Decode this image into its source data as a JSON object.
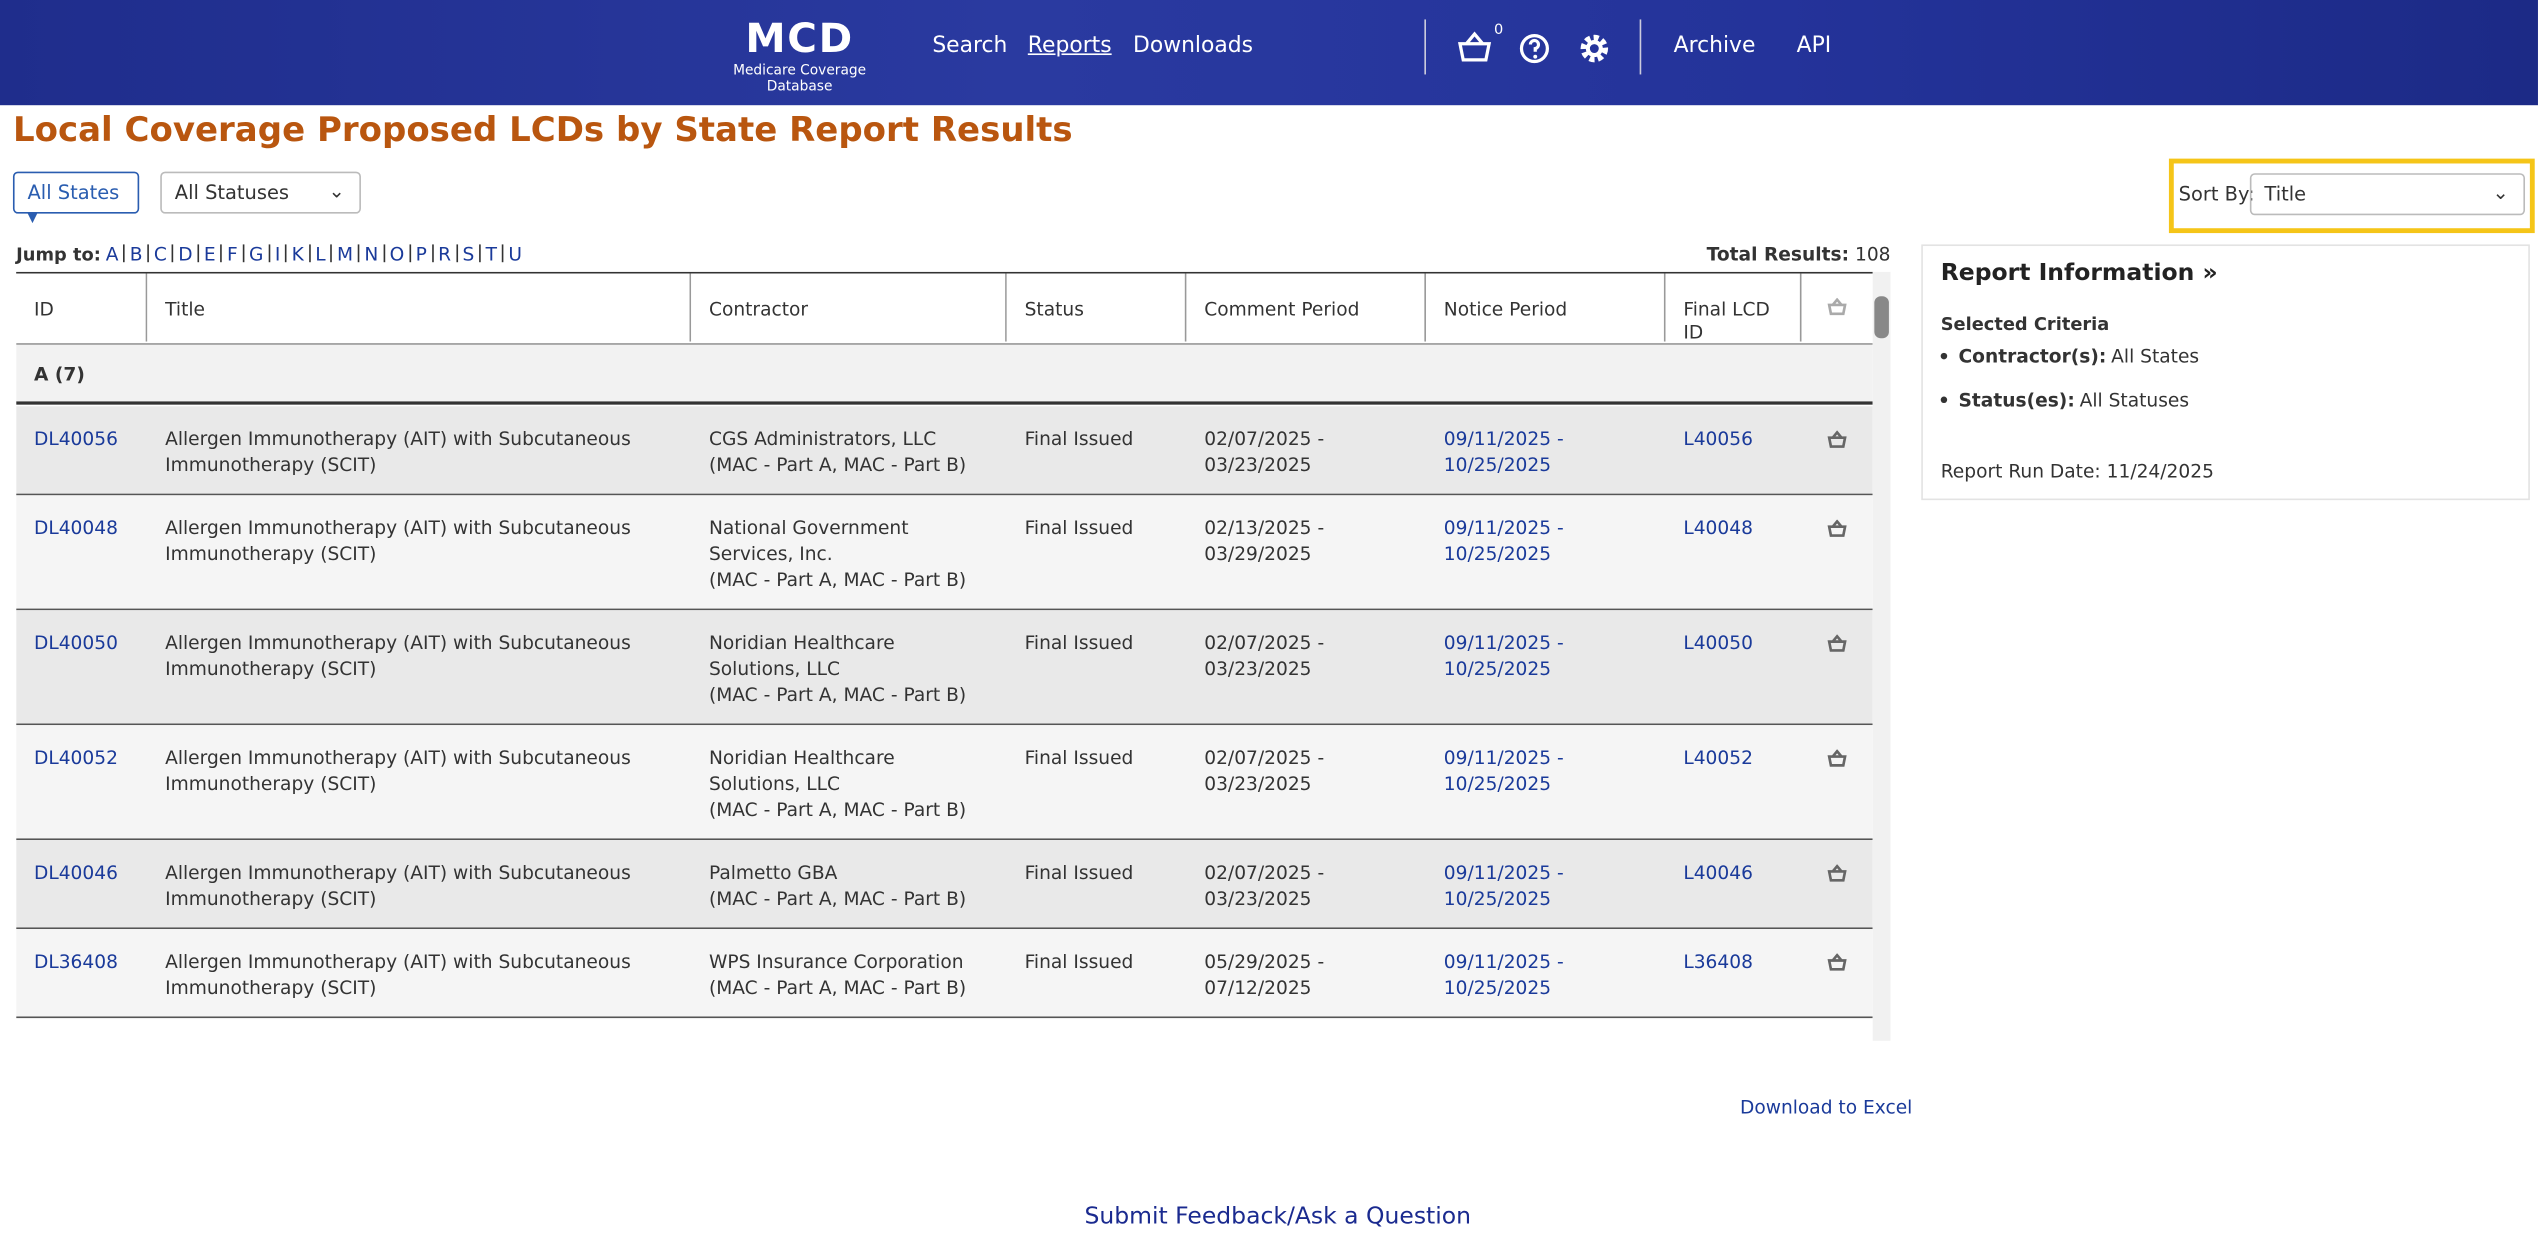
{
  "header": {
    "logo": "MCD",
    "logo_subtitle": "Medicare Coverage Database",
    "nav": [
      "Search",
      "Reports",
      "Downloads",
      "Archive",
      "API"
    ],
    "basket_count": "0"
  },
  "title": "Local Coverage Proposed LCDs by State Report Results",
  "filters": {
    "states": "All States",
    "statuses": "All Statuses"
  },
  "sort": {
    "label": "Sort By:",
    "value": "Title"
  },
  "jump": {
    "label": "Jump to:",
    "letters": [
      "A",
      "B",
      "C",
      "D",
      "E",
      "F",
      "G",
      "I",
      "K",
      "L",
      "M",
      "N",
      "O",
      "P",
      "R",
      "S",
      "T",
      "U"
    ]
  },
  "total": {
    "label": "Total Results:",
    "value": "108"
  },
  "table": {
    "columns": [
      "ID",
      "Title",
      "Contractor",
      "Status",
      "Comment Period",
      "Notice Period",
      "Final LCD ID"
    ],
    "group": "A (7)",
    "rows": [
      {
        "id": "DL40056",
        "title": "Allergen Immunotherapy (AIT) with Subcutaneous Immunotherapy (SCIT)",
        "contractor": "CGS Administrators, LLC",
        "contractor_type": "(MAC - Part A, MAC - Part B)",
        "status": "Final Issued",
        "comment": "02/07/2025 - 03/23/2025",
        "notice": "09/11/2025 - 10/25/2025",
        "final": "L40056"
      },
      {
        "id": "DL40048",
        "title": "Allergen Immunotherapy (AIT) with Subcutaneous Immunotherapy (SCIT)",
        "contractor": "National Government Services, Inc.",
        "contractor_type": "(MAC - Part A, MAC - Part B)",
        "status": "Final Issued",
        "comment": "02/13/2025 - 03/29/2025",
        "notice": "09/11/2025 - 10/25/2025",
        "final": "L40048"
      },
      {
        "id": "DL40050",
        "title": "Allergen Immunotherapy (AIT) with Subcutaneous Immunotherapy (SCIT)",
        "contractor": "Noridian Healthcare Solutions, LLC",
        "contractor_type": "(MAC - Part A, MAC - Part B)",
        "status": "Final Issued",
        "comment": "02/07/2025 - 03/23/2025",
        "notice": "09/11/2025 - 10/25/2025",
        "final": "L40050"
      },
      {
        "id": "DL40052",
        "title": "Allergen Immunotherapy (AIT) with Subcutaneous Immunotherapy (SCIT)",
        "contractor": "Noridian Healthcare Solutions, LLC",
        "contractor_type": "(MAC - Part A, MAC - Part B)",
        "status": "Final Issued",
        "comment": "02/07/2025 - 03/23/2025",
        "notice": "09/11/2025 - 10/25/2025",
        "final": "L40052"
      },
      {
        "id": "DL40046",
        "title": "Allergen Immunotherapy (AIT) with Subcutaneous Immunotherapy (SCIT)",
        "contractor": "Palmetto GBA",
        "contractor_type": "(MAC - Part A, MAC - Part B)",
        "status": "Final Issued",
        "comment": "02/07/2025 - 03/23/2025",
        "notice": "09/11/2025 - 10/25/2025",
        "final": "L40046"
      },
      {
        "id": "DL36408",
        "title": "Allergen Immunotherapy (AIT) with Subcutaneous Immunotherapy (SCIT)",
        "contractor": "WPS Insurance Corporation",
        "contractor_type": "(MAC - Part A, MAC - Part B)",
        "status": "Final Issued",
        "comment": "05/29/2025 - 07/12/2025",
        "notice": "09/11/2025 - 10/25/2025",
        "final": "L36408"
      }
    ]
  },
  "report_info": {
    "title": "Report Information »",
    "criteria_title": "Selected Criteria",
    "criteria": [
      {
        "label": "Contractor(s):",
        "value": "All States"
      },
      {
        "label": "Status(es):",
        "value": "All Statuses"
      }
    ],
    "run_date_label": "Report Run Date:",
    "run_date": "11/24/2025"
  },
  "footer": {
    "download": "Download to Excel",
    "feedback": "Submit Feedback/Ask a Question"
  }
}
